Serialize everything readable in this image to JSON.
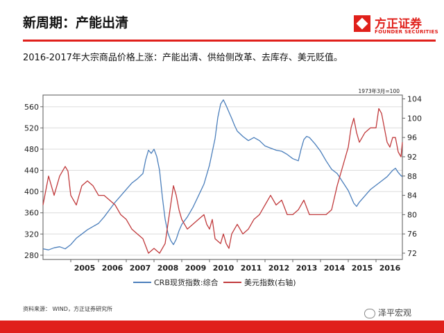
{
  "page": {
    "title": "新周期：产能出清",
    "brand_name": "方正证券",
    "brand_en": "FOUNDER SECURITIES",
    "subtitle": "2016-2017年大宗商品价格上涨：产能出清、供给侧改革、去库存、美元贬值。",
    "source": "资料来源： WIND，方正证券研究所",
    "watermark": "泽平宏观"
  },
  "colors": {
    "brand_red": "#e0201b",
    "crb": "#4a7ebb",
    "usd": "#c0393b"
  },
  "chart_data": {
    "type": "line",
    "annotation": "1973年3月=100",
    "x_ticks": [
      "2005",
      "2006",
      "2007",
      "2008",
      "2009",
      "2010",
      "2011",
      "2012",
      "2013",
      "2014",
      "2015",
      "2016"
    ],
    "x_range": [
      2004.0,
      2016.95
    ],
    "y_left": {
      "ticks": [
        280,
        320,
        360,
        400,
        440,
        480,
        520,
        560
      ],
      "range": [
        272,
        582
      ]
    },
    "y_right": {
      "ticks": [
        72,
        76,
        80,
        84,
        88,
        92,
        96,
        100,
        104
      ],
      "range": [
        70.7,
        104.8
      ]
    },
    "grid": true,
    "legend_position": "bottom",
    "series": [
      {
        "name": "CRB现货指数:综合",
        "axis": "left",
        "color_key": "crb",
        "points": [
          [
            2004.0,
            292
          ],
          [
            2004.2,
            290
          ],
          [
            2004.4,
            294
          ],
          [
            2004.6,
            296
          ],
          [
            2004.8,
            292
          ],
          [
            2005.0,
            300
          ],
          [
            2005.2,
            312
          ],
          [
            2005.4,
            320
          ],
          [
            2005.6,
            328
          ],
          [
            2005.8,
            334
          ],
          [
            2006.0,
            340
          ],
          [
            2006.2,
            352
          ],
          [
            2006.4,
            366
          ],
          [
            2006.6,
            380
          ],
          [
            2006.8,
            392
          ],
          [
            2007.0,
            404
          ],
          [
            2007.2,
            416
          ],
          [
            2007.4,
            424
          ],
          [
            2007.6,
            434
          ],
          [
            2007.7,
            460
          ],
          [
            2007.8,
            478
          ],
          [
            2007.9,
            472
          ],
          [
            2008.0,
            480
          ],
          [
            2008.1,
            466
          ],
          [
            2008.2,
            440
          ],
          [
            2008.3,
            390
          ],
          [
            2008.4,
            348
          ],
          [
            2008.5,
            322
          ],
          [
            2008.6,
            308
          ],
          [
            2008.7,
            300
          ],
          [
            2008.8,
            310
          ],
          [
            2008.9,
            326
          ],
          [
            2009.0,
            338
          ],
          [
            2009.2,
            352
          ],
          [
            2009.4,
            370
          ],
          [
            2009.6,
            392
          ],
          [
            2009.8,
            414
          ],
          [
            2010.0,
            450
          ],
          [
            2010.2,
            500
          ],
          [
            2010.3,
            540
          ],
          [
            2010.4,
            565
          ],
          [
            2010.5,
            573
          ],
          [
            2010.6,
            562
          ],
          [
            2010.7,
            550
          ],
          [
            2010.8,
            538
          ],
          [
            2010.9,
            525
          ],
          [
            2011.0,
            514
          ],
          [
            2011.2,
            504
          ],
          [
            2011.4,
            496
          ],
          [
            2011.6,
            502
          ],
          [
            2011.8,
            496
          ],
          [
            2012.0,
            486
          ],
          [
            2012.2,
            482
          ],
          [
            2012.4,
            478
          ],
          [
            2012.6,
            476
          ],
          [
            2012.8,
            470
          ],
          [
            2013.0,
            462
          ],
          [
            2013.2,
            458
          ],
          [
            2013.3,
            480
          ],
          [
            2013.4,
            498
          ],
          [
            2013.5,
            504
          ],
          [
            2013.6,
            502
          ],
          [
            2013.8,
            490
          ],
          [
            2014.0,
            476
          ],
          [
            2014.2,
            458
          ],
          [
            2014.4,
            442
          ],
          [
            2014.6,
            434
          ],
          [
            2014.8,
            418
          ],
          [
            2015.0,
            402
          ],
          [
            2015.1,
            390
          ],
          [
            2015.2,
            378
          ],
          [
            2015.3,
            372
          ],
          [
            2015.4,
            380
          ],
          [
            2015.6,
            392
          ],
          [
            2015.8,
            404
          ],
          [
            2016.0,
            412
          ],
          [
            2016.2,
            420
          ],
          [
            2016.4,
            428
          ],
          [
            2016.6,
            440
          ],
          [
            2016.7,
            444
          ],
          [
            2016.8,
            436
          ],
          [
            2016.9,
            430
          ],
          [
            2016.95,
            428
          ]
        ]
      },
      {
        "name": "美元指数(右轴)",
        "axis": "right",
        "color_key": "usd",
        "points": [
          [
            2004.0,
            82
          ],
          [
            2004.1,
            85
          ],
          [
            2004.2,
            88
          ],
          [
            2004.3,
            86
          ],
          [
            2004.4,
            84
          ],
          [
            2004.5,
            86
          ],
          [
            2004.6,
            88
          ],
          [
            2004.7,
            89
          ],
          [
            2004.8,
            90
          ],
          [
            2004.9,
            89
          ],
          [
            2005.0,
            84
          ],
          [
            2005.2,
            82
          ],
          [
            2005.4,
            86
          ],
          [
            2005.6,
            87
          ],
          [
            2005.8,
            86
          ],
          [
            2006.0,
            84
          ],
          [
            2006.2,
            84
          ],
          [
            2006.4,
            83
          ],
          [
            2006.6,
            82
          ],
          [
            2006.8,
            80
          ],
          [
            2007.0,
            79
          ],
          [
            2007.2,
            77
          ],
          [
            2007.4,
            76
          ],
          [
            2007.6,
            75
          ],
          [
            2007.8,
            72
          ],
          [
            2008.0,
            73
          ],
          [
            2008.2,
            72
          ],
          [
            2008.4,
            74
          ],
          [
            2008.5,
            78
          ],
          [
            2008.6,
            82
          ],
          [
            2008.7,
            86
          ],
          [
            2008.8,
            84
          ],
          [
            2008.9,
            81
          ],
          [
            2009.0,
            79
          ],
          [
            2009.2,
            77
          ],
          [
            2009.4,
            78
          ],
          [
            2009.6,
            79
          ],
          [
            2009.8,
            80
          ],
          [
            2009.9,
            78
          ],
          [
            2010.0,
            77
          ],
          [
            2010.1,
            79
          ],
          [
            2010.2,
            75
          ],
          [
            2010.4,
            74
          ],
          [
            2010.5,
            76
          ],
          [
            2010.6,
            74
          ],
          [
            2010.7,
            73
          ],
          [
            2010.8,
            76
          ],
          [
            2010.9,
            77
          ],
          [
            2011.0,
            78
          ],
          [
            2011.2,
            76
          ],
          [
            2011.4,
            77
          ],
          [
            2011.6,
            79
          ],
          [
            2011.8,
            80
          ],
          [
            2012.0,
            82
          ],
          [
            2012.2,
            84
          ],
          [
            2012.4,
            82
          ],
          [
            2012.6,
            83
          ],
          [
            2012.8,
            80
          ],
          [
            2013.0,
            80
          ],
          [
            2013.2,
            81
          ],
          [
            2013.4,
            83
          ],
          [
            2013.6,
            80
          ],
          [
            2013.8,
            80
          ],
          [
            2014.0,
            80
          ],
          [
            2014.2,
            80
          ],
          [
            2014.4,
            81
          ],
          [
            2014.6,
            86
          ],
          [
            2014.8,
            90
          ],
          [
            2015.0,
            94
          ],
          [
            2015.1,
            98
          ],
          [
            2015.2,
            100
          ],
          [
            2015.3,
            97
          ],
          [
            2015.4,
            95
          ],
          [
            2015.5,
            96
          ],
          [
            2015.6,
            97
          ],
          [
            2015.8,
            98
          ],
          [
            2016.0,
            98
          ],
          [
            2016.1,
            102
          ],
          [
            2016.2,
            101
          ],
          [
            2016.4,
            95
          ],
          [
            2016.5,
            94
          ],
          [
            2016.6,
            96
          ],
          [
            2016.7,
            96
          ],
          [
            2016.8,
            93
          ],
          [
            2016.9,
            92
          ],
          [
            2016.95,
            95
          ]
        ]
      }
    ]
  }
}
